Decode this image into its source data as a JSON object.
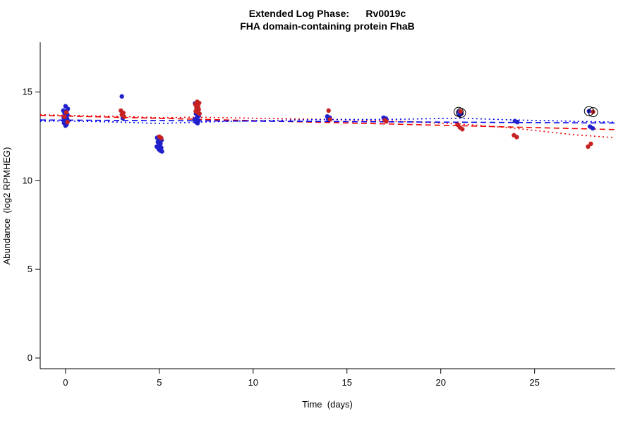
{
  "chart_data": {
    "type": "scatter",
    "title": "Extended Log Phase:      Rv0019c",
    "subtitle": "FHA domain-containing protein FhaB",
    "xlabel": "Time  (days)",
    "ylabel": "Abundance  (log2 RPMHEG)",
    "xlim": [
      -1.35,
      29.3
    ],
    "ylim": [
      -0.6,
      17.8
    ],
    "xticks": [
      0,
      5,
      10,
      15,
      20,
      25
    ],
    "yticks": [
      0,
      5,
      10,
      15
    ],
    "grid": false,
    "legend": "none",
    "series": [
      {
        "name": "blue",
        "color": "#2121CC",
        "points": [
          [
            0,
            14.2
          ],
          [
            0.12,
            14.05
          ],
          [
            -0.12,
            13.95
          ],
          [
            0.05,
            13.9
          ],
          [
            -0.05,
            13.8
          ],
          [
            0.1,
            13.72
          ],
          [
            0,
            13.65
          ],
          [
            -0.1,
            13.55
          ],
          [
            0.08,
            13.5
          ],
          [
            -0.04,
            13.42
          ],
          [
            0.12,
            13.38
          ],
          [
            0,
            13.32
          ],
          [
            -0.08,
            13.25
          ],
          [
            0.06,
            13.18
          ],
          [
            0,
            13.1
          ],
          [
            3,
            14.75
          ],
          [
            3.05,
            13.52
          ],
          [
            4.88,
            12.42
          ],
          [
            5.02,
            12.35
          ],
          [
            5.12,
            12.28
          ],
          [
            4.92,
            12.18
          ],
          [
            5.06,
            12.08
          ],
          [
            4.98,
            12.0
          ],
          [
            4.86,
            11.92
          ],
          [
            5.1,
            11.86
          ],
          [
            4.96,
            11.78
          ],
          [
            5.04,
            11.7
          ],
          [
            5.14,
            11.65
          ],
          [
            6.9,
            14.35
          ],
          [
            7.05,
            13.92
          ],
          [
            6.95,
            13.78
          ],
          [
            7.1,
            13.65
          ],
          [
            7,
            13.55
          ],
          [
            6.88,
            13.45
          ],
          [
            7.08,
            13.38
          ],
          [
            6.96,
            13.3
          ],
          [
            7.04,
            13.24
          ],
          [
            13.95,
            13.62
          ],
          [
            14.08,
            13.55
          ],
          [
            14,
            13.48
          ],
          [
            16.95,
            13.55
          ],
          [
            17.08,
            13.5
          ],
          [
            17,
            13.44
          ],
          [
            20.95,
            13.88
          ],
          [
            21.1,
            13.78
          ],
          [
            21,
            13.7
          ],
          [
            23.95,
            13.36
          ],
          [
            24.08,
            13.3
          ],
          [
            27.9,
            13.92
          ],
          [
            27.95,
            13.05
          ],
          [
            28.1,
            12.95
          ]
        ]
      },
      {
        "name": "red",
        "color": "#C62222",
        "points": [
          [
            0.04,
            13.85
          ],
          [
            -0.06,
            13.6
          ],
          [
            0.1,
            13.3
          ],
          [
            2.95,
            13.95
          ],
          [
            3.08,
            13.82
          ],
          [
            3,
            13.72
          ],
          [
            3.12,
            13.6
          ],
          [
            5,
            12.48
          ],
          [
            5.1,
            12.4
          ],
          [
            7.02,
            14.45
          ],
          [
            7.12,
            14.38
          ],
          [
            6.92,
            14.3
          ],
          [
            7.06,
            14.2
          ],
          [
            6.98,
            14.12
          ],
          [
            7.1,
            14.02
          ],
          [
            6.94,
            13.92
          ],
          [
            7.04,
            13.85
          ],
          [
            7.14,
            13.78
          ],
          [
            14.02,
            13.95
          ],
          [
            14.1,
            13.45
          ],
          [
            17.02,
            13.4
          ],
          [
            17.1,
            13.34
          ],
          [
            21.05,
            13.9
          ],
          [
            20.9,
            13.15
          ],
          [
            21.02,
            13.0
          ],
          [
            21.15,
            12.9
          ],
          [
            23.9,
            12.56
          ],
          [
            24.05,
            12.46
          ],
          [
            28.12,
            13.88
          ],
          [
            28,
            12.08
          ],
          [
            27.85,
            11.92
          ]
        ]
      }
    ],
    "outlier_circles": [
      [
        20.95,
        13.88
      ],
      [
        21.08,
        13.82
      ],
      [
        27.9,
        13.92
      ],
      [
        28.12,
        13.86
      ]
    ],
    "trend_lines": [
      {
        "name": "red-linear-fit",
        "color": "#EE0000",
        "dash": "8,5",
        "points": [
          [
            -1.35,
            13.68
          ],
          [
            29.3,
            12.88
          ]
        ]
      },
      {
        "name": "red-loess-fit",
        "color": "#EE0000",
        "dash": "2,4",
        "points": [
          [
            -1.35,
            13.72
          ],
          [
            0,
            13.68
          ],
          [
            3,
            13.62
          ],
          [
            5,
            13.55
          ],
          [
            7,
            13.58
          ],
          [
            10,
            13.52
          ],
          [
            14,
            13.45
          ],
          [
            17,
            13.38
          ],
          [
            21,
            13.2
          ],
          [
            24,
            12.95
          ],
          [
            27,
            12.6
          ],
          [
            29.3,
            12.42
          ]
        ]
      },
      {
        "name": "blue-linear-fit",
        "color": "#0000EE",
        "dash": "8,5",
        "points": [
          [
            -1.35,
            13.42
          ],
          [
            29.3,
            13.25
          ]
        ]
      },
      {
        "name": "blue-loess-fit",
        "color": "#0000EE",
        "dash": "2,4",
        "points": [
          [
            -1.35,
            13.35
          ],
          [
            0,
            13.37
          ],
          [
            3,
            13.3
          ],
          [
            5,
            13.22
          ],
          [
            7,
            13.3
          ],
          [
            10,
            13.38
          ],
          [
            14,
            13.45
          ],
          [
            17,
            13.45
          ],
          [
            21,
            13.52
          ],
          [
            24,
            13.42
          ],
          [
            27,
            13.35
          ],
          [
            29.3,
            13.3
          ]
        ]
      }
    ],
    "point_radius": 3.2,
    "axis_color": "#000000"
  }
}
